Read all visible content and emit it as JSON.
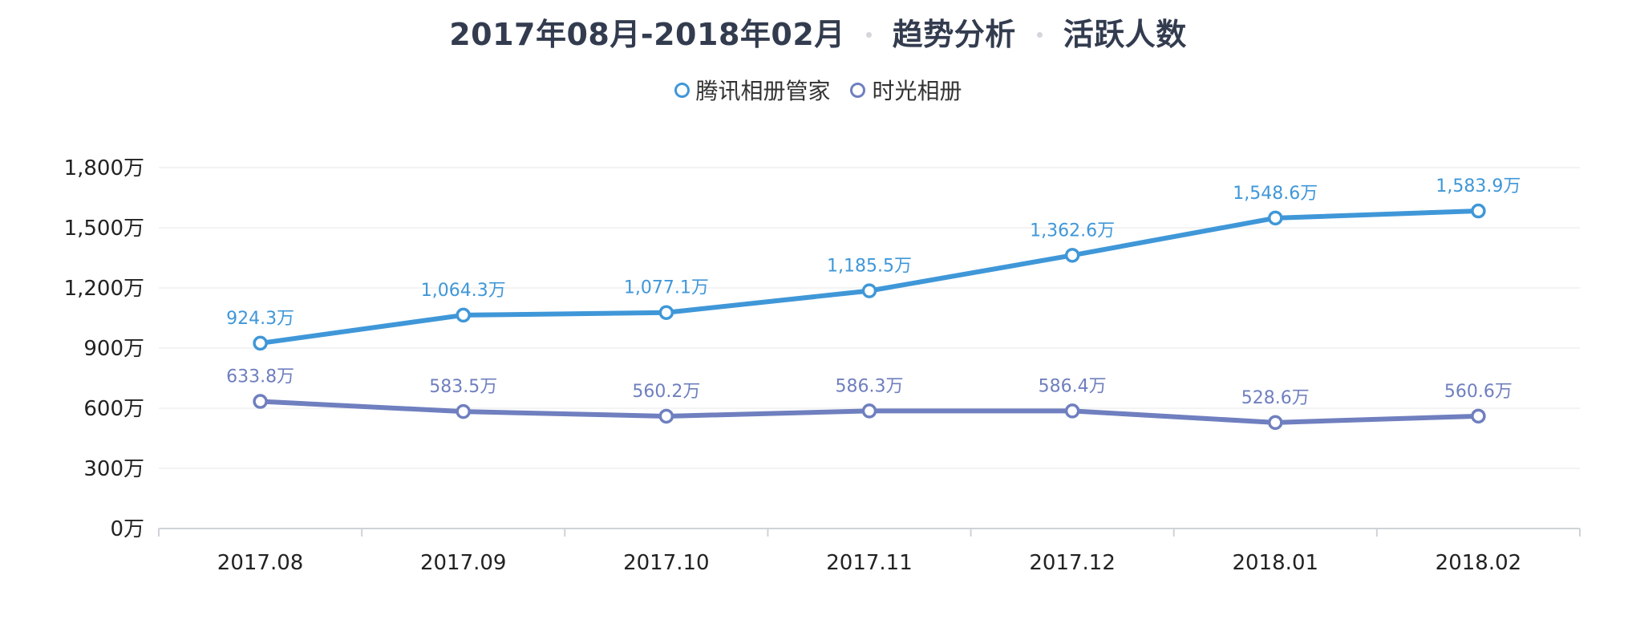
{
  "header": {
    "period": "2017年08月-2018年02月",
    "section": "趋势分析",
    "metric": "活跃人数"
  },
  "chart_data": {
    "type": "line",
    "categories": [
      "2017.08",
      "2017.09",
      "2017.10",
      "2017.11",
      "2017.12",
      "2018.01",
      "2018.02"
    ],
    "series": [
      {
        "name": "腾讯相册管家",
        "color": "#3f97d8",
        "values": [
          924.3,
          1064.3,
          1077.1,
          1185.5,
          1362.6,
          1548.6,
          1583.9
        ],
        "labels": [
          "924.3万",
          "1,064.3万",
          "1,077.1万",
          "1,185.5万",
          "1,362.6万",
          "1,548.6万",
          "1,583.9万"
        ]
      },
      {
        "name": "时光相册",
        "color": "#6f7fbf",
        "values": [
          633.8,
          583.5,
          560.2,
          586.3,
          586.4,
          528.6,
          560.6
        ],
        "labels": [
          "633.8万",
          "583.5万",
          "560.2万",
          "586.3万",
          "586.4万",
          "528.6万",
          "560.6万"
        ]
      }
    ],
    "ylim": [
      0,
      1800
    ],
    "yticks": [
      0,
      300,
      600,
      900,
      1200,
      1500,
      1800
    ],
    "ytick_labels": [
      "0万",
      "300万",
      "600万",
      "900万",
      "1,200万",
      "1,500万",
      "1,800万"
    ],
    "grid": true,
    "legend_position": "top-center",
    "title": "2017年08月-2018年02月 · 趋势分析 · 活跃人数"
  }
}
